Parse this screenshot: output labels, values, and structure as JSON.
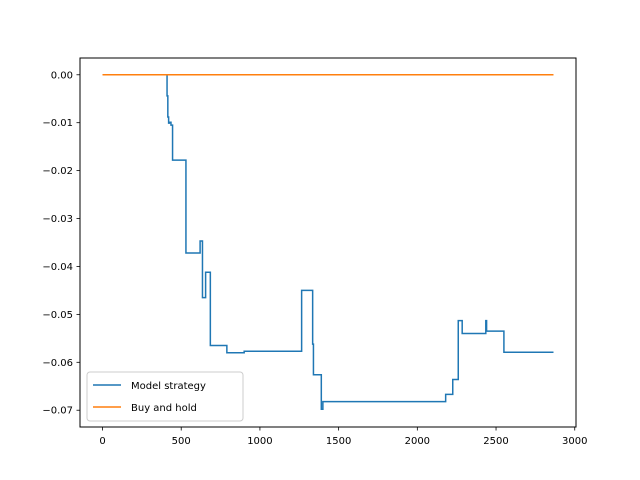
{
  "chart_data": {
    "type": "line",
    "title": "",
    "xlabel": "",
    "ylabel": "",
    "xlim": [
      -143,
      3008
    ],
    "ylim": [
      -0.0735,
      0.0035
    ],
    "xticks": [
      0,
      500,
      1000,
      1500,
      2000,
      2500,
      3000
    ],
    "xtick_labels": [
      "0",
      "500",
      "1000",
      "1500",
      "2000",
      "2500",
      "3000"
    ],
    "yticks": [
      0.0,
      -0.01,
      -0.02,
      -0.03,
      -0.04,
      -0.05,
      -0.06,
      -0.07
    ],
    "ytick_labels": [
      "0.00",
      "−0.01",
      "−0.02",
      "−0.03",
      "−0.04",
      "−0.05",
      "−0.06",
      "−0.07"
    ],
    "grid": false,
    "legend_position": "lower-left",
    "series": [
      {
        "name": "Model strategy",
        "color": "#1f77b4",
        "step": "post",
        "x": [
          0,
          410,
          415,
          420,
          425,
          435,
          440,
          445,
          530,
          620,
          635,
          640,
          655,
          685,
          690,
          790,
          900,
          1265,
          1335,
          1340,
          1345,
          1390,
          1395,
          1400,
          1405,
          2180,
          2225,
          2260,
          2285,
          2305,
          2435,
          2440,
          2550,
          2865
        ],
        "y": [
          0.0,
          -0.0044,
          -0.0088,
          -0.0101,
          -0.0099,
          -0.0105,
          -0.0105,
          -0.0178,
          -0.0372,
          -0.0347,
          -0.0465,
          -0.0465,
          -0.0412,
          -0.0565,
          -0.0565,
          -0.058,
          -0.0577,
          -0.045,
          -0.0562,
          -0.0626,
          -0.0626,
          -0.0698,
          -0.0698,
          -0.0682,
          -0.0682,
          -0.0667,
          -0.0636,
          -0.0513,
          -0.054,
          -0.054,
          -0.0513,
          -0.0535,
          -0.0579,
          -0.0579
        ]
      },
      {
        "name": "Buy and hold",
        "color": "#ff7f0e",
        "step": "post",
        "x": [
          0,
          2865
        ],
        "y": [
          0.0,
          0.0
        ]
      }
    ]
  }
}
